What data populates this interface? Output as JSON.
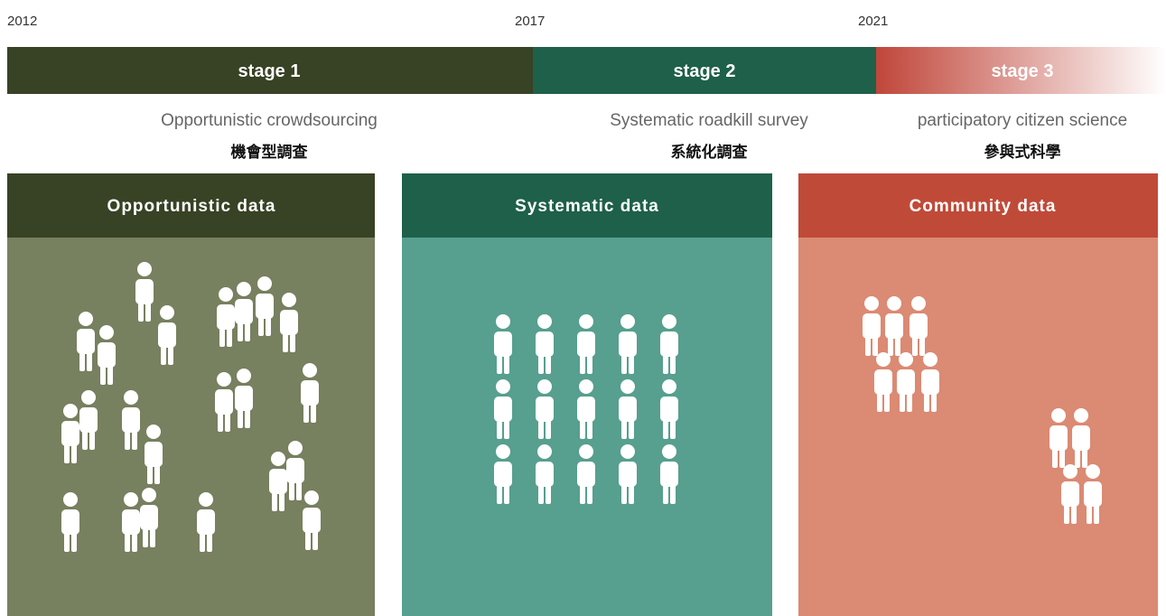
{
  "timeline": {
    "years": [
      "2012",
      "2017",
      "2021"
    ]
  },
  "stages": [
    {
      "label": "stage 1",
      "subtitle": "Opportunistic crowdsourcing",
      "subtitle_zh": "機會型調查",
      "panel_title": "Opportunistic data"
    },
    {
      "label": "stage 2",
      "subtitle": "Systematic roadkill survey",
      "subtitle_zh": "系統化調查",
      "panel_title": "Systematic data"
    },
    {
      "label": "stage 3",
      "subtitle": "participatory citizen science",
      "subtitle_zh": "參與式科學",
      "panel_title": "Community data"
    }
  ]
}
